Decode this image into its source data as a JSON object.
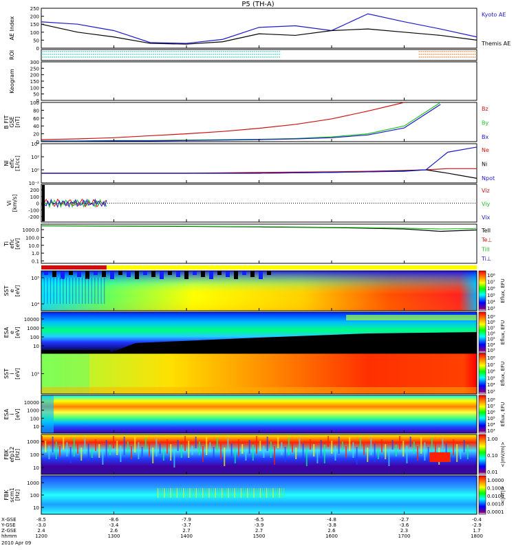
{
  "title": "P5 (TH-A)",
  "date_label": "2010 Apr 09",
  "colors": {
    "blue": "#1a1acc",
    "red": "#d01010",
    "green": "#22c022",
    "black": "#000000",
    "cyan": "#20c0c0",
    "orange": "#d07010",
    "yellow": "#ffff00"
  },
  "chart_data": [
    {
      "type": "line",
      "id": "ae",
      "ylabel": "AE Index",
      "ylim": [
        0,
        250
      ],
      "yticks": [
        "0",
        "50",
        "100",
        "150",
        "200",
        "250"
      ],
      "legend": [
        "Kyoto AE",
        "Themis AE"
      ],
      "x_hours": [
        12.0,
        12.5,
        13.0,
        13.5,
        14.0,
        14.5,
        15.0,
        15.5,
        16.0,
        16.5,
        17.0,
        17.5,
        18.0
      ],
      "series": [
        {
          "name": "Kyoto AE",
          "values": [
            165,
            150,
            110,
            35,
            30,
            55,
            130,
            140,
            110,
            215,
            165,
            120,
            70
          ]
        },
        {
          "name": "Themis AE",
          "values": [
            150,
            100,
            70,
            30,
            25,
            40,
            90,
            80,
            110,
            120,
            100,
            80,
            50
          ]
        }
      ]
    },
    {
      "type": "bar",
      "id": "roi",
      "ylabel": "ROI",
      "segments": [
        {
          "start": 12.0,
          "end": 15.3,
          "color": "cyan"
        },
        {
          "start": 17.2,
          "end": 18.0,
          "color": "orange"
        }
      ]
    },
    {
      "type": "heatmap",
      "id": "keogram",
      "ylabel": "Keogram",
      "ylim": [
        0,
        300
      ],
      "yticks": [
        "0",
        "50",
        "100",
        "150",
        "200",
        "250",
        "300"
      ]
    },
    {
      "type": "line",
      "id": "bfield",
      "ylabel": [
        "B FIT",
        "GSE",
        "[nT]"
      ],
      "ylim": [
        0,
        100
      ],
      "yticks": [
        "0",
        "20",
        "40",
        "60",
        "80",
        "100"
      ],
      "legend": [
        "Bz",
        "By",
        "Bx"
      ],
      "x_hours": [
        12.0,
        12.5,
        13.0,
        13.5,
        14.0,
        14.5,
        15.0,
        15.5,
        16.0,
        16.5,
        17.0,
        17.5,
        18.0
      ],
      "series": [
        {
          "name": "Bz",
          "values": [
            5,
            7,
            10,
            15,
            20,
            26,
            34,
            44,
            58,
            78,
            100,
            null,
            null
          ]
        },
        {
          "name": "By",
          "values": [
            2,
            2,
            3,
            3,
            4,
            5,
            6,
            8,
            12,
            20,
            40,
            100,
            null
          ]
        },
        {
          "name": "Bx",
          "values": [
            1,
            1,
            2,
            2,
            3,
            4,
            5,
            7,
            10,
            17,
            35,
            95,
            null
          ]
        }
      ]
    },
    {
      "type": "line",
      "id": "density",
      "ylabel": [
        "NI",
        "eflc",
        "[1/cc]"
      ],
      "ylim": [
        "1e-2",
        "1e4"
      ],
      "yticks": [
        "10⁻²",
        "10⁰",
        "10²",
        "10⁴"
      ],
      "legend": [
        "Ne",
        "Ni",
        "Npot"
      ],
      "x_hours": [
        12.0,
        13.0,
        14.0,
        15.0,
        16.0,
        16.5,
        17.0,
        17.3,
        17.6,
        18.0
      ],
      "series": [
        {
          "name": "Ne",
          "values": [
            0.3,
            0.3,
            0.3,
            0.4,
            0.5,
            0.6,
            0.8,
            1,
            1.5,
            1.5
          ]
        },
        {
          "name": "Ni",
          "values": [
            0.3,
            0.3,
            0.3,
            0.3,
            0.4,
            0.5,
            0.7,
            1,
            0.3,
            0.05
          ]
        },
        {
          "name": "Npot",
          "values": [
            0.3,
            0.3,
            0.3,
            0.3,
            0.4,
            0.5,
            0.6,
            1,
            500,
            3000
          ]
        }
      ]
    },
    {
      "type": "line",
      "id": "velocity",
      "ylabel": [
        "Vi",
        "[km/s]"
      ],
      "ylim": [
        -300,
        300
      ],
      "yticks": [
        "-200",
        "-100",
        "0",
        "100",
        "200"
      ],
      "legend": [
        "Viz",
        "Viy",
        "Vix"
      ],
      "x_range": [
        12.0,
        12.9
      ]
    },
    {
      "type": "line",
      "id": "temperature",
      "ylabel": [
        "Ti",
        "eflc",
        "[eV]"
      ],
      "yticks": [
        "0.1",
        "1.0",
        "10.0",
        "100.0",
        "1000.0"
      ],
      "legend": [
        "TeII",
        "Te⊥",
        "TiII",
        "Ti⊥"
      ],
      "x_hours": [
        12.0,
        13.0,
        14.0,
        15.0,
        16.0,
        17.0,
        17.5,
        18.0
      ],
      "series": [
        {
          "name": "TeII",
          "values": [
            3000,
            2800,
            2500,
            2200,
            1800,
            1200,
            600,
            900
          ]
        },
        {
          "name": "TiII",
          "values": [
            3200,
            3000,
            2700,
            2400,
            2000,
            1500,
            1200,
            1400
          ]
        }
      ]
    },
    {
      "type": "bar",
      "id": "mode_bar",
      "segments": [
        {
          "start": 12.0,
          "end": 12.9,
          "color": "red"
        },
        {
          "start": 12.9,
          "end": 18.0,
          "color": "yellow"
        }
      ]
    },
    {
      "type": "heatmap",
      "id": "sst_e",
      "ylabel": [
        "SST",
        "e",
        "[eV]"
      ],
      "yticks": [
        "10⁴",
        "10⁵"
      ],
      "cbar_label": "Eflux, EFU",
      "cbar_ticks": [
        "10⁸",
        "10⁷",
        "10⁶",
        "10⁵",
        "10⁴",
        "10³"
      ]
    },
    {
      "type": "heatmap",
      "id": "esa_e",
      "ylabel": [
        "ESA",
        "e",
        "[eV]"
      ],
      "yticks": [
        "10",
        "100",
        "1000",
        "10000"
      ],
      "cbar_label": "Eflux, EFU",
      "cbar_ticks": [
        "10⁹",
        "10⁸",
        "10⁷",
        "10⁶",
        "10⁵",
        "10⁴",
        "10³"
      ]
    },
    {
      "type": "heatmap",
      "id": "sst_i",
      "ylabel": [
        "SST",
        "i",
        "[eV]"
      ],
      "yticks": [
        "10⁵"
      ],
      "cbar_label": "Eflux, EFU",
      "cbar_ticks": [
        "10⁸",
        "10⁷",
        "10⁶",
        "10⁵",
        "10⁴",
        "10³"
      ]
    },
    {
      "type": "heatmap",
      "id": "esa_i",
      "ylabel": [
        "ESA",
        "i",
        "[eV]"
      ],
      "yticks": [
        "10",
        "100",
        "1000",
        "10000"
      ],
      "cbar_label": "Eflux, EFU",
      "cbar_ticks": [
        "10⁸",
        "10⁷",
        "10⁶",
        "10⁵",
        "10⁴",
        "10³"
      ]
    },
    {
      "type": "heatmap",
      "id": "fbk_e",
      "ylabel": [
        "FBK",
        "efp12",
        "[Hz]"
      ],
      "yticks": [
        "10",
        "100",
        "1000"
      ],
      "cbar_label": "<|mV/m|>",
      "cbar_ticks": [
        "1.00",
        "0.10",
        "0.01"
      ]
    },
    {
      "type": "heatmap",
      "id": "fbk_b",
      "ylabel": [
        "FBK",
        "scm1",
        "[Hz]"
      ],
      "yticks": [
        "10",
        "100",
        "1000"
      ],
      "cbar_label": "<|nT|>",
      "cbar_ticks": [
        "1.0000",
        "0.1000",
        "0.0100",
        "0.0010",
        "0.0001"
      ]
    }
  ],
  "x_axis": {
    "labels": [
      "X-GSE",
      "Y-GSE",
      "Z-GSE",
      "hhmm"
    ],
    "ticks": [
      {
        "x": "-8.5",
        "y": "-3.0",
        "z": "2.4",
        "hhmm": "1200"
      },
      {
        "x": "-8.6",
        "y": "-3.4",
        "z": "2.6",
        "hhmm": "1300"
      },
      {
        "x": "-7.9",
        "y": "-3.7",
        "z": "2.7",
        "hhmm": "1400"
      },
      {
        "x": "-6.5",
        "y": "-3.9",
        "z": "2.7",
        "hhmm": "1500"
      },
      {
        "x": "-4.8",
        "y": "-3.8",
        "z": "2.6",
        "hhmm": "1600"
      },
      {
        "x": "-2.7",
        "y": "-3.6",
        "z": "2.3",
        "hhmm": "1700"
      },
      {
        "x": "-0.4",
        "y": "-2.9",
        "z": "1.7",
        "hhmm": "1800"
      }
    ]
  }
}
